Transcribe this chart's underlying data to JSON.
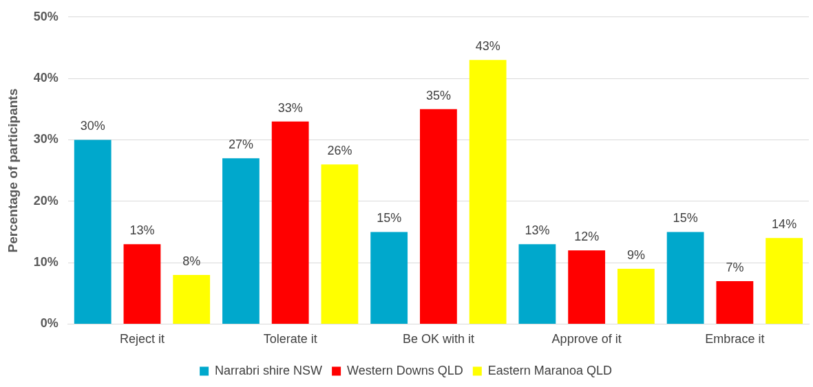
{
  "chart_data": {
    "type": "bar",
    "ylabel": "Percentage of participants",
    "categories": [
      "Reject it",
      "Tolerate it",
      "Be OK with it",
      "Approve of it",
      "Embrace it"
    ],
    "series": [
      {
        "name": "Narrabri shire NSW",
        "color": "#00a8cc",
        "values": [
          30,
          27,
          15,
          13,
          15
        ],
        "value_labels": [
          "30%",
          "27%",
          "15%",
          "13%",
          "15%"
        ]
      },
      {
        "name": "Western Downs QLD",
        "color": "#ff0000",
        "values": [
          13,
          33,
          35,
          12,
          7
        ],
        "value_labels": [
          "13%",
          "33%",
          "35%",
          "12%",
          "7%"
        ]
      },
      {
        "name": "Eastern Maranoa QLD",
        "color": "#ffff00",
        "values": [
          8,
          26,
          43,
          9,
          14
        ],
        "value_labels": [
          "8%",
          "26%",
          "43%",
          "9%",
          "14%"
        ]
      }
    ],
    "ylim": [
      0,
      50
    ],
    "yticks": [
      {
        "value": 0,
        "label": "0%"
      },
      {
        "value": 10,
        "label": "10%"
      },
      {
        "value": 20,
        "label": "20%"
      },
      {
        "value": 30,
        "label": "30%"
      },
      {
        "value": 40,
        "label": "40%"
      },
      {
        "value": 50,
        "label": "50%"
      }
    ],
    "grid": "y",
    "legend": "bottom"
  }
}
